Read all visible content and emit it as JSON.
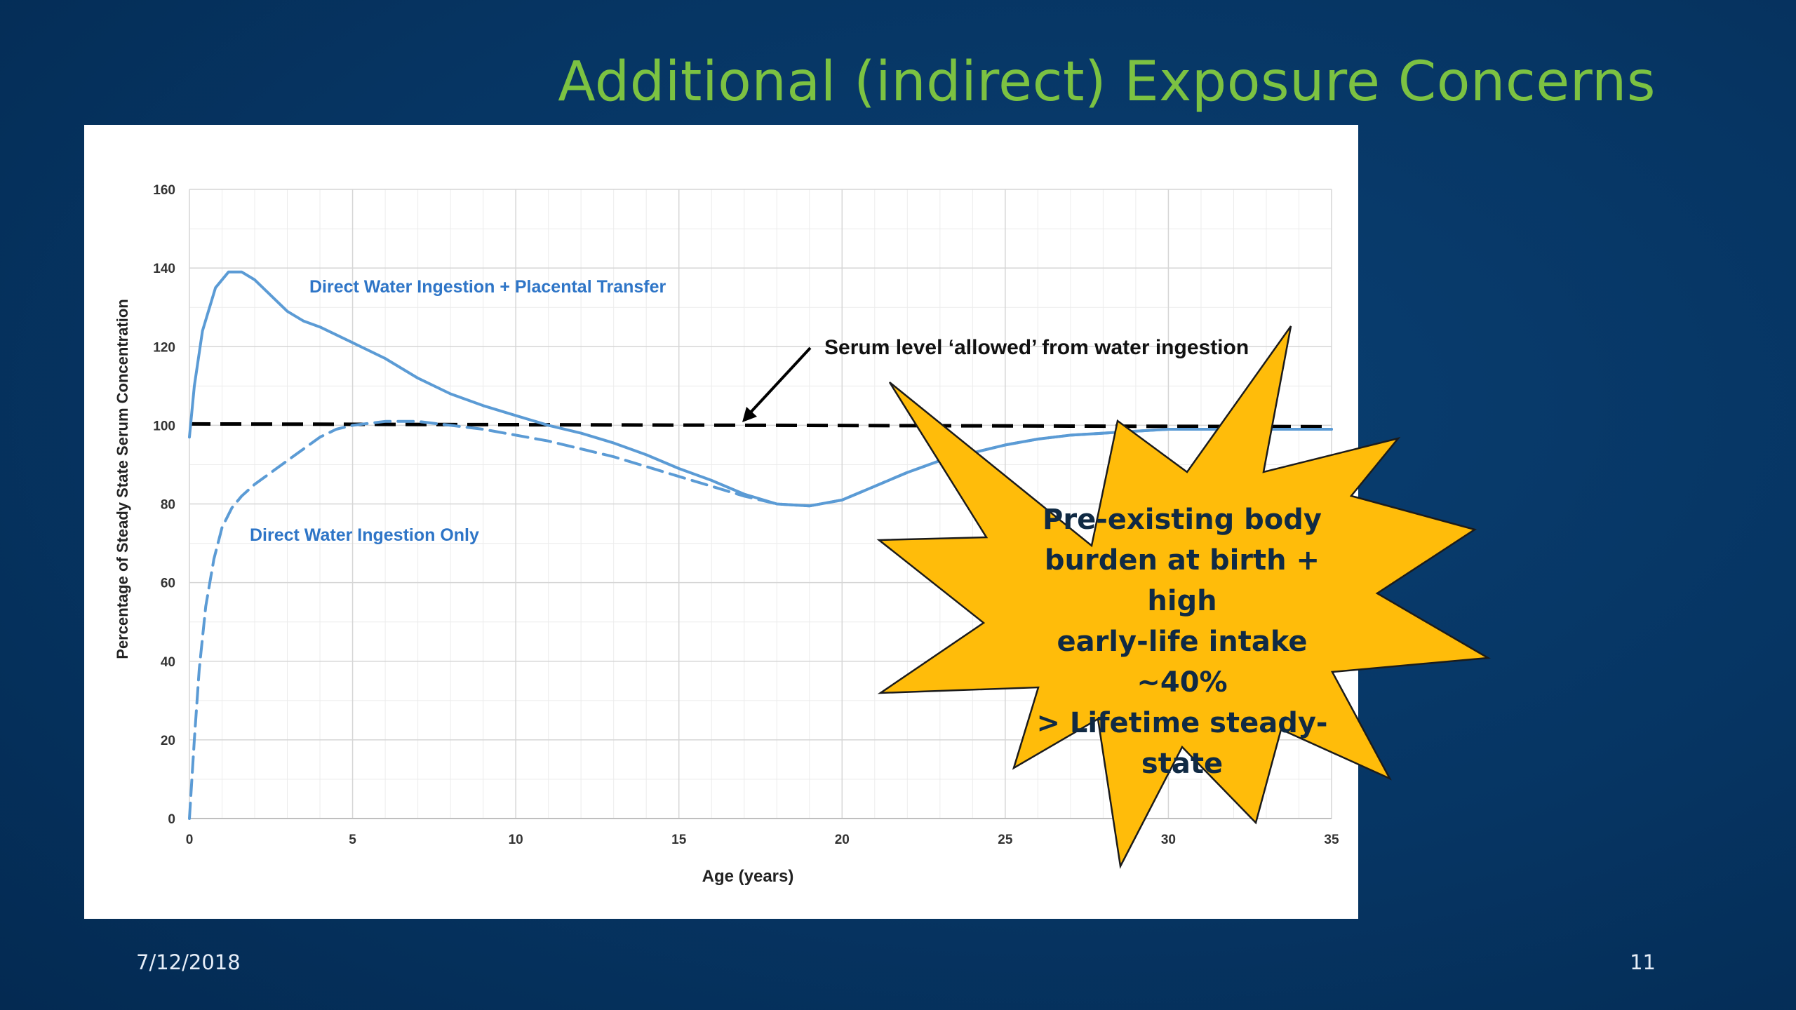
{
  "slide": {
    "title": "Additional (indirect) Exposure Concerns",
    "date": "7/12/2018",
    "page_number": "11",
    "burst_lines": [
      "Pre-existing body",
      "burden at birth + high",
      "early-life intake ~40%",
      "> Lifetime steady-state"
    ],
    "colors": {
      "background": "#063563",
      "title": "#7cc242",
      "burst_fill": "#ffbc0a",
      "series": "#5b9bd5"
    }
  },
  "chart_data": {
    "type": "line",
    "xlabel": "Age (years)",
    "ylabel": "Percentage of  Steady State Serum Concentration",
    "xlim": [
      0,
      35
    ],
    "ylim": [
      0,
      160
    ],
    "x_ticks": [
      0,
      5,
      10,
      15,
      20,
      25,
      30,
      35
    ],
    "y_ticks": [
      0,
      20,
      40,
      60,
      80,
      100,
      120,
      140,
      160
    ],
    "grid": true,
    "series": [
      {
        "name": "Direct Water Ingestion + Placental Transfer",
        "style": "solid",
        "color": "#5b9bd5",
        "x": [
          0,
          0.15,
          0.4,
          0.8,
          1.2,
          1.6,
          2.0,
          2.5,
          3.0,
          3.5,
          4.0,
          5.0,
          6.0,
          7.0,
          8.0,
          9.0,
          10.0,
          11.0,
          12.0,
          13.0,
          14.0,
          15.0,
          16.0,
          17.0,
          18.0,
          19.0,
          20.0,
          21.0,
          22.0,
          23.0,
          24.0,
          25.0,
          26.0,
          27.0,
          28.0,
          29.0,
          30.0,
          31.0,
          32.0,
          33.0,
          34.0,
          35.0
        ],
        "y": [
          97,
          110,
          124,
          135,
          139,
          139,
          137,
          133,
          129,
          126.5,
          125,
          121,
          117,
          112,
          108,
          105,
          102.5,
          100,
          98,
          95.5,
          92.5,
          89,
          86,
          82.5,
          80,
          79.5,
          81,
          84.5,
          88,
          91,
          93,
          95,
          96.5,
          97.5,
          98,
          98.5,
          99,
          99,
          99,
          99,
          99,
          99
        ]
      },
      {
        "name": "Direct Water Ingestion Only",
        "style": "dashed",
        "color": "#5b9bd5",
        "x": [
          0,
          0.15,
          0.3,
          0.5,
          0.75,
          1.0,
          1.3,
          1.6,
          2.0,
          2.5,
          3.0,
          3.5,
          4.0,
          4.5,
          5.0,
          6.0,
          7.0,
          8.0,
          9.0,
          10.0,
          11.0,
          12.0,
          13.0,
          14.0,
          15.0,
          16.0,
          17.0,
          18.0,
          19.0,
          20.0,
          21.0,
          22.0,
          23.0,
          24.0,
          25.0,
          26.0,
          27.0,
          28.0,
          29.0,
          30.0,
          31.0,
          32.0,
          33.0,
          34.0,
          35.0
        ],
        "y": [
          0,
          20,
          38,
          54,
          66,
          74,
          79,
          82,
          85,
          88,
          91,
          94,
          97,
          99,
          100,
          101,
          101,
          100,
          99,
          97.5,
          96,
          94,
          92,
          89.5,
          87,
          84.5,
          82,
          80,
          79.5,
          81,
          84.5,
          88,
          91,
          93,
          95,
          96.5,
          97.5,
          98,
          98.5,
          99,
          99,
          99,
          99,
          99,
          99
        ]
      }
    ],
    "reference_line": {
      "label": "Serum level ‘allowed’ from water ingestion",
      "y": 100,
      "style": "dashed",
      "color": "#000000"
    }
  }
}
